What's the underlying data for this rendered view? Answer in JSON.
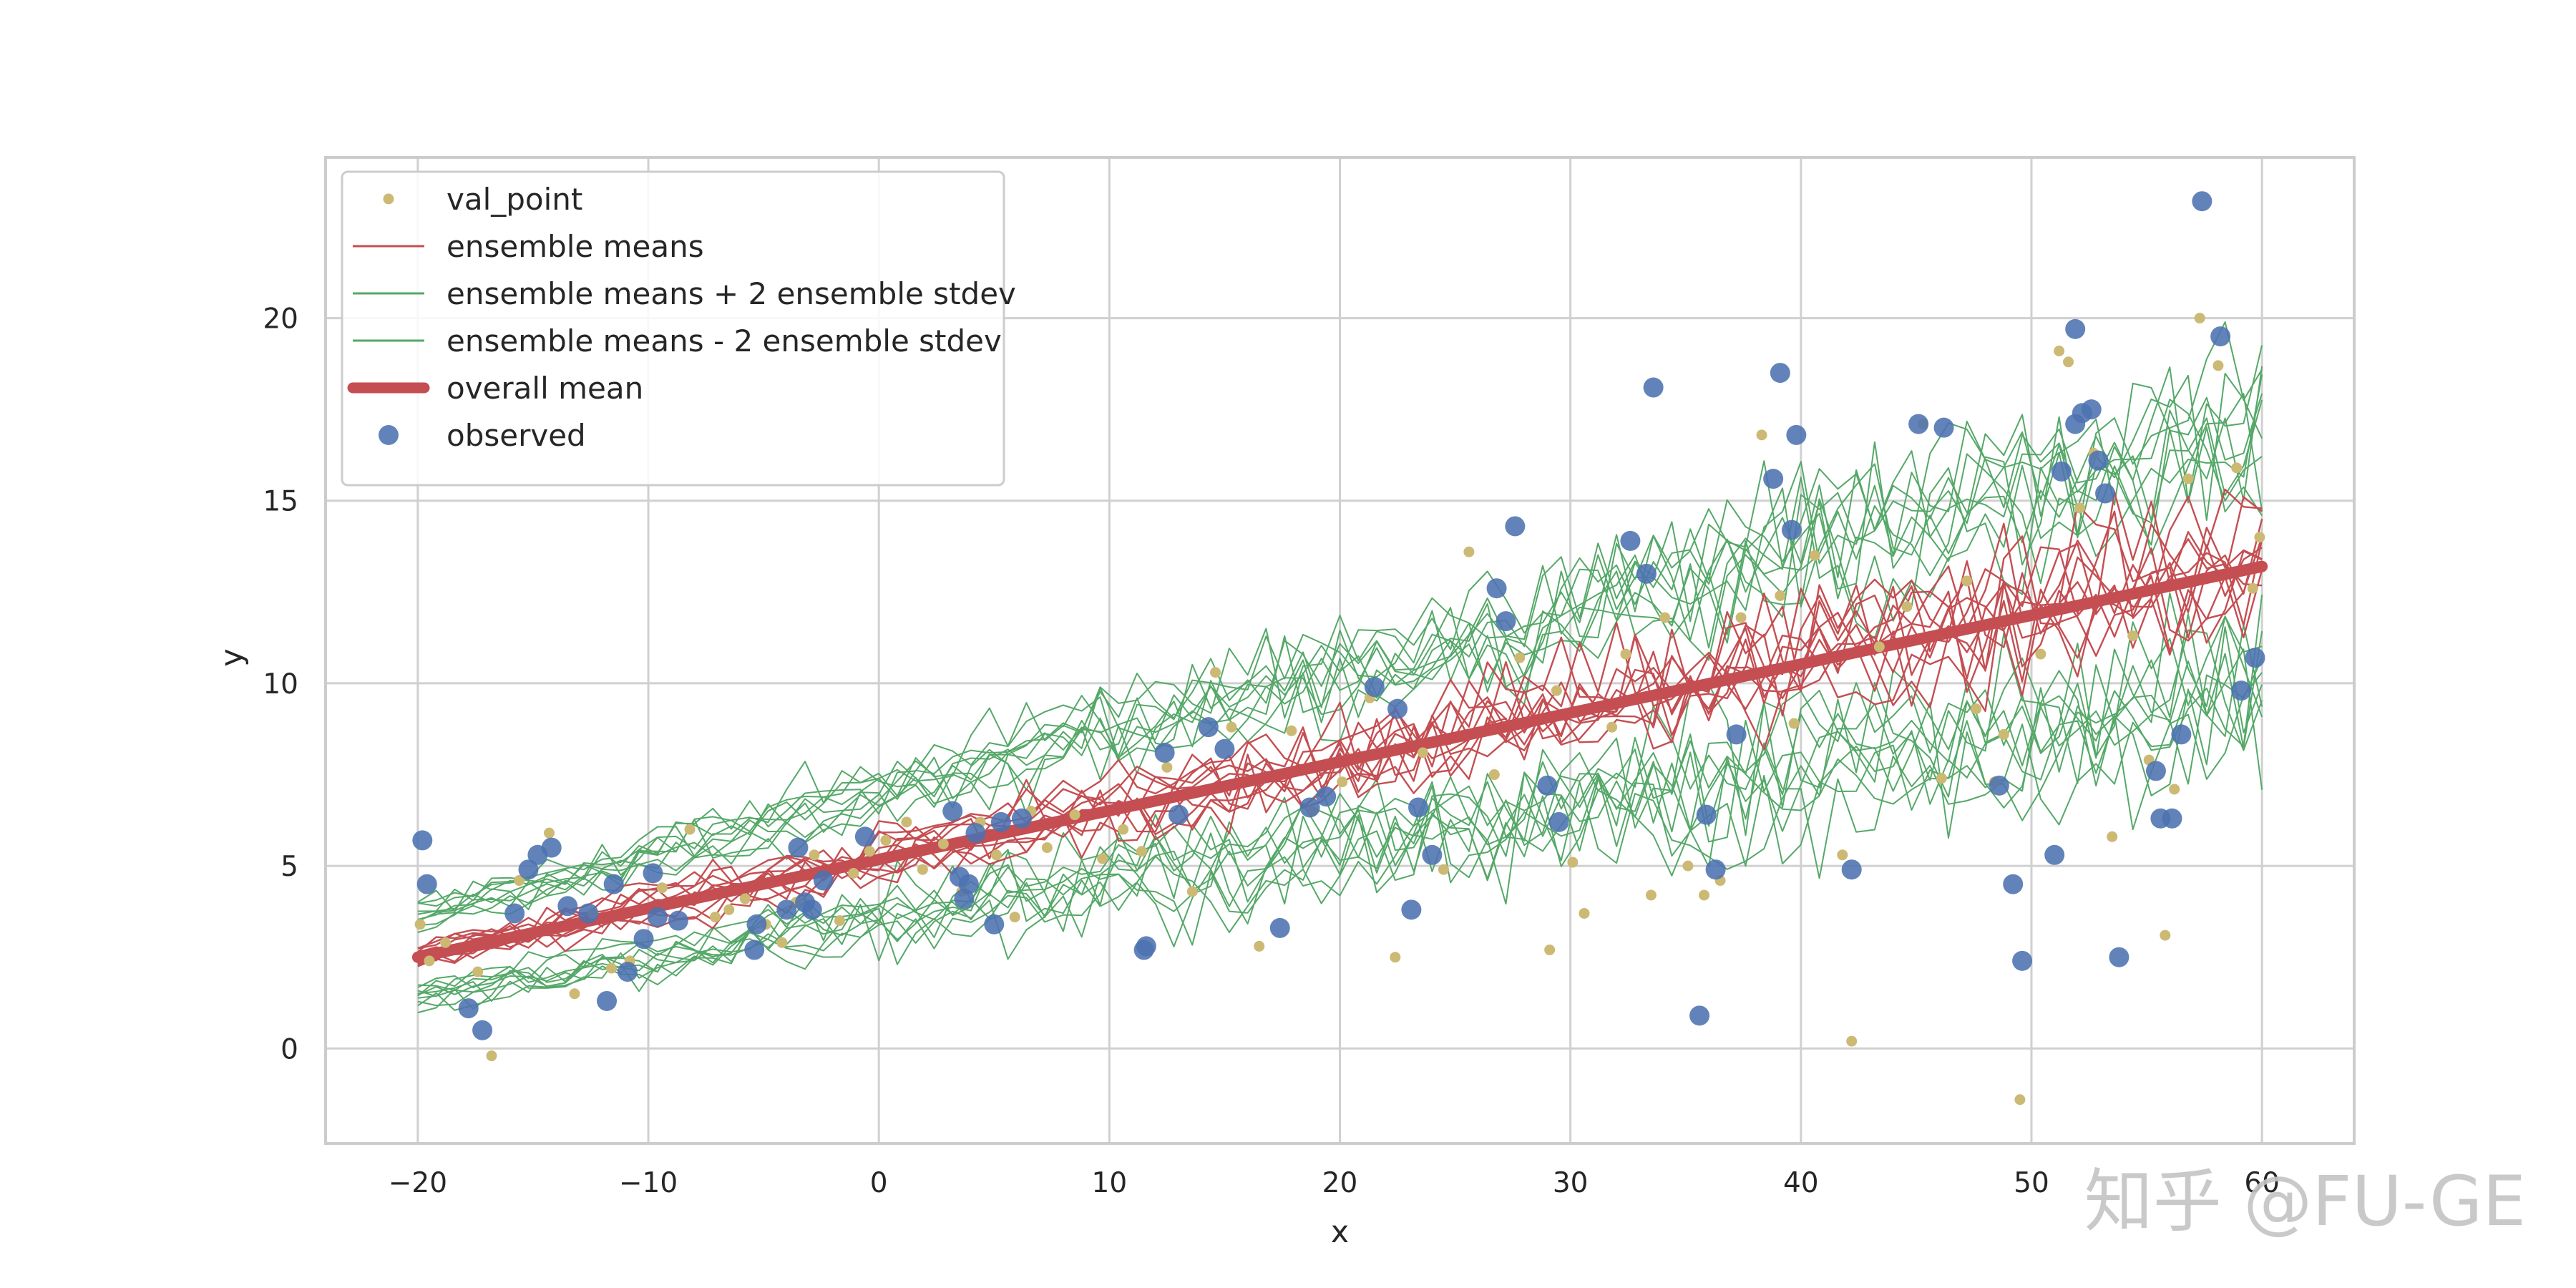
{
  "chart_data": {
    "type": "line",
    "title": "",
    "xlabel": "x",
    "ylabel": "y",
    "xlim": [
      -24,
      64
    ],
    "ylim": [
      -2.6,
      24.4
    ],
    "x_ticks": [
      -20,
      -10,
      0,
      10,
      20,
      30,
      40,
      50,
      60
    ],
    "x_tick_labels": [
      "−20",
      "−10",
      "0",
      "10",
      "20",
      "30",
      "40",
      "50",
      "60"
    ],
    "y_ticks": [
      0,
      5,
      10,
      15,
      20
    ],
    "y_tick_labels": [
      "0",
      "5",
      "10",
      "15",
      "20"
    ],
    "grid": true,
    "legend_position": "upper-left",
    "legend": [
      {
        "label": "val_point",
        "marker": "small-dot",
        "color": "#ccb974"
      },
      {
        "label": "ensemble means",
        "marker": "thin-line",
        "color": "#c44e52"
      },
      {
        "label": "ensemble means + 2 ensemble stdev",
        "marker": "thin-line",
        "color": "#55a868"
      },
      {
        "label": "ensemble means - 2 ensemble stdev",
        "marker": "thin-line",
        "color": "#55a868"
      },
      {
        "label": "overall mean",
        "marker": "thick-line",
        "color": "#c44e52"
      },
      {
        "label": "observed",
        "marker": "big-dot",
        "color": "#4c72b0"
      }
    ],
    "colors": {
      "val_point": "#ccb974",
      "ensemble_means": "#c44e52",
      "ensemble_stdev": "#55a868",
      "overall_mean": "#c44e52",
      "observed": "#4c72b0",
      "grid": "#d0d0d0",
      "spine": "#cccccc"
    },
    "overall_mean": {
      "x": [
        -20,
        60
      ],
      "y": [
        2.5,
        13.2
      ]
    },
    "ensemble": {
      "n_members": 10,
      "x_start": -20,
      "x_end": 60,
      "x_step": 0.8,
      "mean_start": 2.5,
      "mean_end": 13.2,
      "stdev_start": 0.55,
      "stdev_end": 1.8,
      "mean_noise_start": 0.25,
      "mean_noise_end": 2.2,
      "band_noise_start": 0.35,
      "band_noise_end": 2.8
    },
    "observed": {
      "x": [
        -19.8,
        -19.6,
        -17.8,
        -17.2,
        -15.8,
        -15.2,
        -14.8,
        -14.2,
        -13.5,
        -12.6,
        -11.8,
        -11.5,
        -10.9,
        -10.2,
        -9.8,
        -9.6,
        -8.7,
        -5.4,
        -5.3,
        -4.0,
        -3.5,
        -3.2,
        -2.9,
        -2.4,
        -0.6,
        3.2,
        3.5,
        3.7,
        3.9,
        4.2,
        5.0,
        5.3,
        6.2,
        11.5,
        11.6,
        12.4,
        13.0,
        14.3,
        15.0,
        17.4,
        18.7,
        19.4,
        21.5,
        22.5,
        23.1,
        23.4,
        24.0,
        26.8,
        27.2,
        27.6,
        29.0,
        29.5,
        32.6,
        33.3,
        33.6,
        35.6,
        35.9,
        36.3,
        37.2,
        38.8,
        39.1,
        39.6,
        39.8,
        42.2,
        45.1,
        46.2,
        48.6,
        49.2,
        49.6,
        51.0,
        51.3,
        51.9,
        51.9,
        52.2,
        52.6,
        52.9,
        53.2,
        53.8,
        55.4,
        55.6,
        56.1,
        56.5,
        57.4,
        58.2,
        59.1,
        59.7
      ],
      "y": [
        5.7,
        4.5,
        1.1,
        0.5,
        3.7,
        4.9,
        5.3,
        5.5,
        3.9,
        3.7,
        1.3,
        4.5,
        2.1,
        3.0,
        4.8,
        3.6,
        3.5,
        2.7,
        3.4,
        3.8,
        5.5,
        4.0,
        3.8,
        4.6,
        5.8,
        6.5,
        4.7,
        4.1,
        4.5,
        5.9,
        3.4,
        6.2,
        6.3,
        2.7,
        2.8,
        8.1,
        6.4,
        8.8,
        8.2,
        3.3,
        6.6,
        6.9,
        9.9,
        9.3,
        3.8,
        6.6,
        5.3,
        12.6,
        11.7,
        14.3,
        7.2,
        6.2,
        13.9,
        13.0,
        18.1,
        0.9,
        6.4,
        4.9,
        8.6,
        15.6,
        18.5,
        14.2,
        16.8,
        4.9,
        17.1,
        17.0,
        7.2,
        4.5,
        2.4,
        5.3,
        15.8,
        17.1,
        19.7,
        17.4,
        17.5,
        16.1,
        15.2,
        2.5,
        7.6,
        6.3,
        6.3,
        8.6,
        23.2,
        19.5,
        9.8,
        10.7
      ]
    },
    "val_point": {
      "x": [
        -19.9,
        -19.5,
        -18.8,
        -17.4,
        -16.8,
        -15.6,
        -14.3,
        -13.2,
        -12.4,
        -11.6,
        -10.8,
        -9.4,
        -8.2,
        -7.1,
        -6.5,
        -5.8,
        -4.9,
        -4.2,
        -3.6,
        -2.8,
        -1.7,
        -1.1,
        -0.4,
        0.3,
        1.2,
        1.9,
        2.8,
        3.6,
        4.4,
        5.1,
        5.9,
        6.6,
        7.3,
        8.5,
        9.7,
        10.6,
        11.4,
        12.5,
        13.6,
        14.6,
        15.3,
        16.5,
        17.9,
        18.8,
        20.1,
        21.3,
        22.4,
        23.6,
        24.5,
        25.6,
        26.7,
        27.8,
        29.1,
        29.4,
        30.1,
        30.6,
        31.8,
        32.4,
        33.5,
        34.1,
        35.1,
        35.8,
        36.5,
        37.4,
        38.3,
        39.1,
        39.7,
        40.6,
        41.8,
        42.2,
        43.4,
        44.6,
        45.3,
        46.1,
        47.2,
        47.6,
        48.4,
        48.8,
        49.5,
        50.4,
        51.2,
        51.6,
        52.1,
        52.7,
        53.5,
        54.4,
        55.1,
        55.8,
        56.2,
        56.8,
        57.3,
        58.1,
        58.9,
        59.6,
        59.9
      ],
      "y": [
        3.4,
        2.4,
        2.9,
        2.1,
        -0.2,
        4.6,
        5.9,
        1.5,
        3.7,
        2.2,
        2.4,
        4.4,
        6.0,
        3.6,
        3.8,
        4.1,
        3.4,
        2.9,
        4.0,
        5.3,
        3.5,
        4.8,
        5.4,
        5.7,
        6.2,
        4.9,
        5.6,
        4.3,
        6.2,
        5.3,
        3.6,
        6.5,
        5.5,
        6.4,
        5.2,
        6.0,
        5.4,
        7.7,
        4.3,
        10.3,
        8.8,
        2.8,
        8.7,
        6.5,
        7.3,
        9.6,
        2.5,
        8.1,
        4.9,
        13.6,
        7.5,
        10.7,
        2.7,
        9.8,
        5.1,
        3.7,
        8.8,
        10.8,
        4.2,
        11.8,
        5.0,
        4.2,
        4.6,
        11.8,
        16.8,
        12.4,
        8.9,
        13.5,
        5.3,
        0.2,
        11.0,
        12.1,
        17.1,
        7.4,
        12.8,
        9.3,
        7.3,
        8.6,
        -1.4,
        10.8,
        19.1,
        18.8,
        14.8,
        16.3,
        5.8,
        11.3,
        7.9,
        3.1,
        7.1,
        15.6,
        20.0,
        18.7,
        15.9,
        12.6,
        14.0
      ]
    }
  },
  "watermark": "知乎 @FU-GE"
}
